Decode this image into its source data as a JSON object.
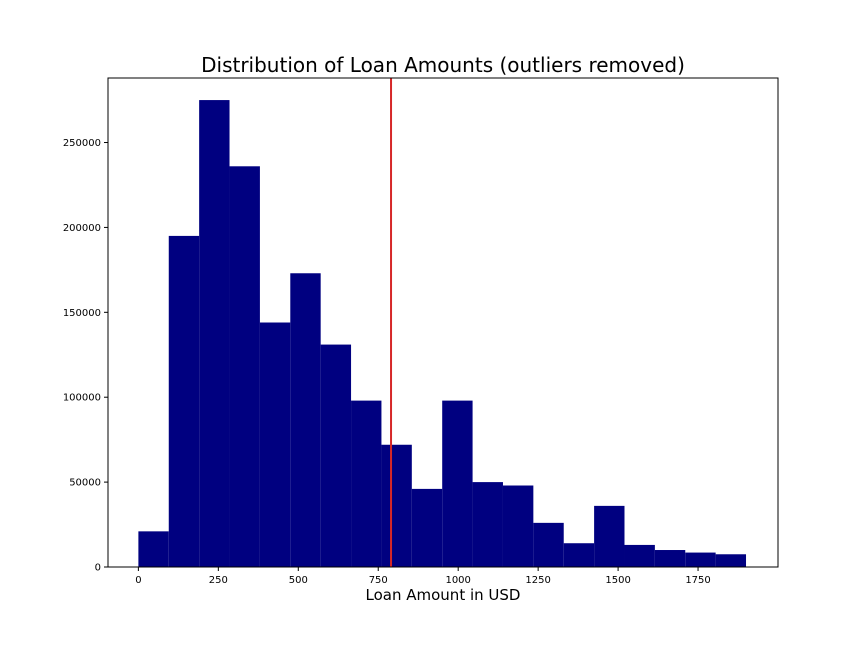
{
  "chart_data": {
    "type": "bar",
    "subtype": "histogram",
    "title": "Distribution of Loan Amounts (outliers removed)",
    "xlabel": "Loan Amount in USD",
    "ylabel": "",
    "xlim": [
      -95,
      2000
    ],
    "ylim": [
      0,
      288000
    ],
    "bar_color": "#000080",
    "bins": [
      {
        "x0": 0,
        "x1": 95,
        "count": 21000
      },
      {
        "x0": 95,
        "x1": 190,
        "count": 195000
      },
      {
        "x0": 190,
        "x1": 285,
        "count": 275000
      },
      {
        "x0": 285,
        "x1": 380,
        "count": 236000
      },
      {
        "x0": 380,
        "x1": 475,
        "count": 144000
      },
      {
        "x0": 475,
        "x1": 570,
        "count": 173000
      },
      {
        "x0": 570,
        "x1": 665,
        "count": 131000
      },
      {
        "x0": 665,
        "x1": 760,
        "count": 98000
      },
      {
        "x0": 760,
        "x1": 855,
        "count": 72000
      },
      {
        "x0": 855,
        "x1": 950,
        "count": 46000
      },
      {
        "x0": 950,
        "x1": 1045,
        "count": 98000
      },
      {
        "x0": 1045,
        "x1": 1140,
        "count": 50000
      },
      {
        "x0": 1140,
        "x1": 1235,
        "count": 48000
      },
      {
        "x0": 1235,
        "x1": 1330,
        "count": 26000
      },
      {
        "x0": 1330,
        "x1": 1425,
        "count": 14000
      },
      {
        "x0": 1425,
        "x1": 1520,
        "count": 36000
      },
      {
        "x0": 1520,
        "x1": 1615,
        "count": 13000
      },
      {
        "x0": 1615,
        "x1": 1710,
        "count": 10000
      },
      {
        "x0": 1710,
        "x1": 1805,
        "count": 8500
      },
      {
        "x0": 1805,
        "x1": 1900,
        "count": 7500
      }
    ],
    "reference_line": {
      "x": 790,
      "color": "#d62728"
    },
    "x_ticks": [
      0,
      250,
      500,
      750,
      1000,
      1250,
      1500,
      1750
    ],
    "x_tick_labels": [
      "0",
      "250",
      "500",
      "750",
      "1000",
      "1250",
      "1500",
      "1750"
    ],
    "y_ticks": [
      0,
      50000,
      100000,
      150000,
      200000,
      250000
    ],
    "y_tick_labels": [
      "0",
      "50000",
      "100000",
      "150000",
      "200000",
      "250000"
    ],
    "grid": false,
    "legend": "none"
  }
}
